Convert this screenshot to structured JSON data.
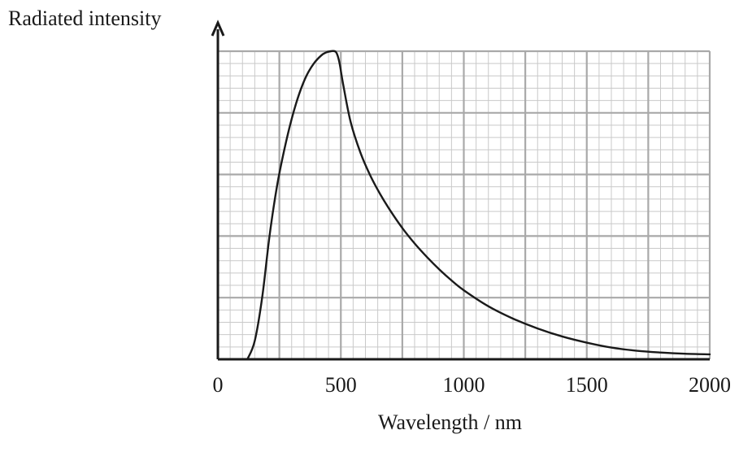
{
  "chart_data": {
    "type": "line",
    "title": "",
    "xlabel": "Wavelength / nm",
    "ylabel": "Radiated intensity",
    "xlim": [
      0,
      2000
    ],
    "ylim": [
      0,
      5
    ],
    "x_ticks": [
      0,
      500,
      1000,
      1500,
      2000
    ],
    "x_tick_labels": [
      "0",
      "500",
      "1000",
      "1500",
      "2000"
    ],
    "grid": true,
    "grid_major": {
      "x_step": 250,
      "y_step": 1
    },
    "grid_minor": {
      "x_step": 50,
      "y_step": 0.2
    },
    "series": [
      {
        "x": [
          120,
          150,
          180,
          210,
          240,
          270,
          300,
          330,
          360,
          390,
          420,
          440,
          460,
          475,
          485,
          495,
          510,
          540,
          580,
          620,
          660,
          700,
          750,
          800,
          850,
          900,
          950,
          1000,
          1100,
          1200,
          1300,
          1400,
          1500,
          1600,
          1700,
          1800,
          1900,
          2000
        ],
        "y": [
          0.0,
          0.3,
          1.0,
          2.0,
          2.8,
          3.4,
          3.9,
          4.3,
          4.6,
          4.8,
          4.93,
          4.98,
          5.0,
          5.0,
          4.95,
          4.8,
          4.45,
          3.85,
          3.35,
          2.98,
          2.68,
          2.42,
          2.13,
          1.88,
          1.66,
          1.46,
          1.28,
          1.12,
          0.86,
          0.66,
          0.5,
          0.37,
          0.27,
          0.19,
          0.14,
          0.11,
          0.09,
          0.08
        ],
        "color": "#1a1a1a"
      }
    ]
  }
}
